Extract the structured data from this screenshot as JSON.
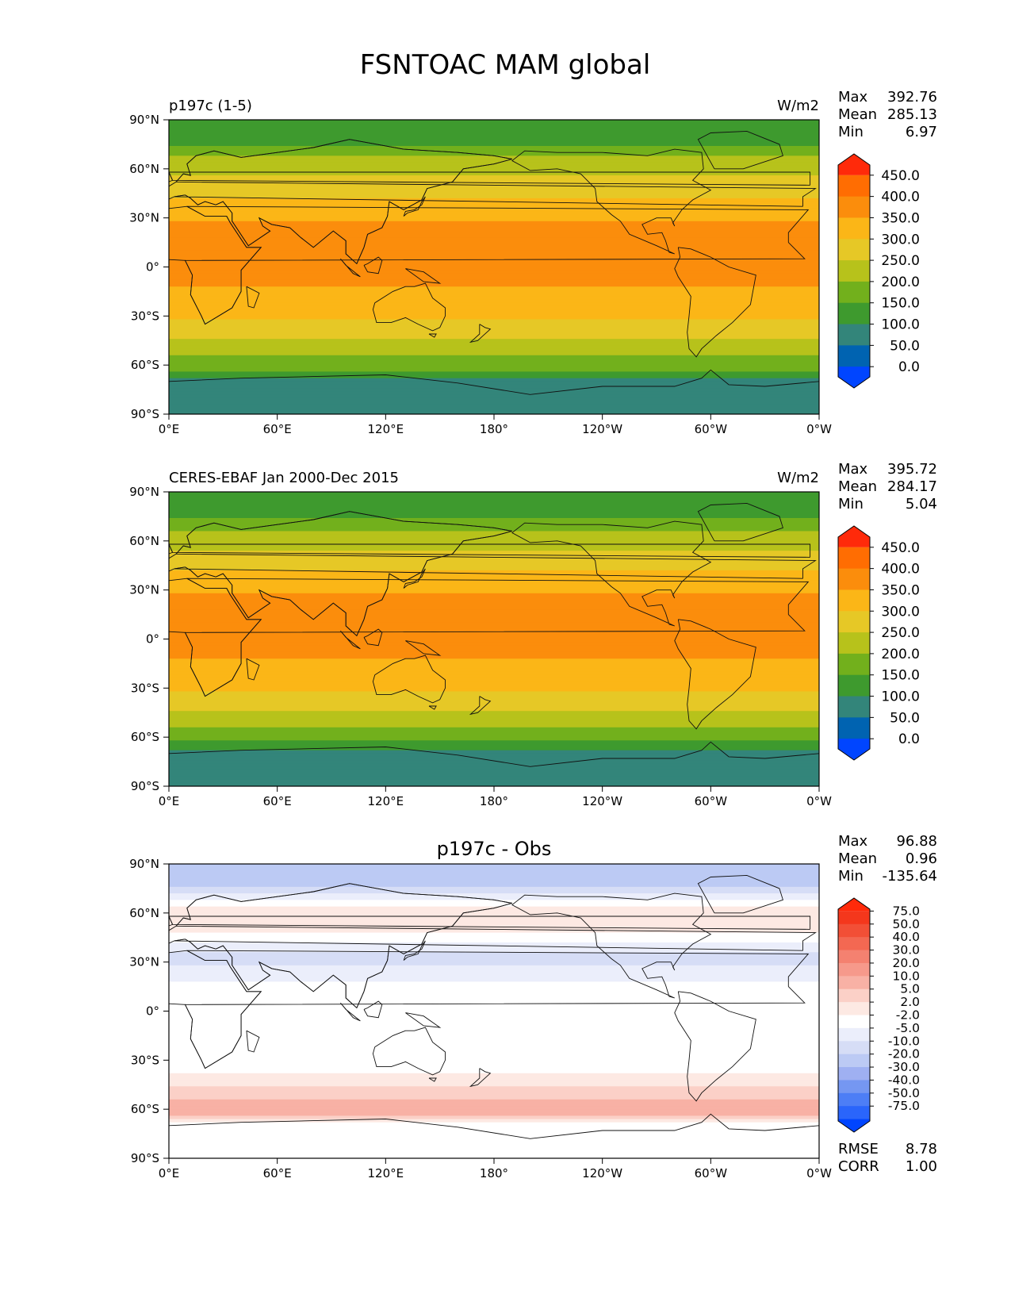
{
  "figure": {
    "title": "FSNTOAC MAM global"
  },
  "ticks": {
    "lat": [
      "90°N",
      "60°N",
      "30°N",
      "0°",
      "30°S",
      "60°S",
      "90°S"
    ],
    "lon": [
      "0°E",
      "60°E",
      "120°E",
      "180°",
      "120°W",
      "60°W",
      "0°W"
    ]
  },
  "colors": {
    "seq": [
      "#0045ff",
      "#0063b1",
      "#33857a",
      "#3e9a2e",
      "#72b01c",
      "#b7c21b",
      "#e6c826",
      "#fbb617",
      "#fb8d0c",
      "#ff6d02",
      "#ff2a0a"
    ],
    "div": [
      "#0045ff",
      "#2a65fb",
      "#4d7ef6",
      "#7597f2",
      "#9fb0f2",
      "#bccaf4",
      "#d6ddf6",
      "#ebeefb",
      "#ffffff",
      "#fde9e3",
      "#fbd0c7",
      "#f8b1a5",
      "#f6998b",
      "#f48170",
      "#f36852",
      "#f24f36",
      "#f4371c",
      "#ff2a0a"
    ]
  },
  "chart_data": [
    {
      "type": "heatmap",
      "title": "p197c (1-5)",
      "units": "W/m2",
      "stats": {
        "max_label": "Max",
        "max": "392.76",
        "mean_label": "Mean",
        "mean": "285.13",
        "min_label": "Min",
        "min": "6.97"
      },
      "colorbar_levels": [
        "450.0",
        "400.0",
        "350.0",
        "300.0",
        "250.0",
        "200.0",
        "150.0",
        "100.0",
        "50.0",
        "0.0"
      ],
      "xlim": [
        0,
        360
      ],
      "ylim": [
        -90,
        90
      ],
      "zonal_profile": [
        {
          "lat": 90,
          "value": 100
        },
        {
          "lat": 80,
          "value": 110
        },
        {
          "lat": 72,
          "value": 160
        },
        {
          "lat": 66,
          "value": 210
        },
        {
          "lat": 58,
          "value": 240
        },
        {
          "lat": 48,
          "value": 275
        },
        {
          "lat": 40,
          "value": 310
        },
        {
          "lat": 33,
          "value": 340
        },
        {
          "lat": 20,
          "value": 370
        },
        {
          "lat": 10,
          "value": 370
        },
        {
          "lat": -8,
          "value": 360
        },
        {
          "lat": -15,
          "value": 345
        },
        {
          "lat": -25,
          "value": 325
        },
        {
          "lat": -35,
          "value": 290
        },
        {
          "lat": -43,
          "value": 255
        },
        {
          "lat": -50,
          "value": 225
        },
        {
          "lat": -56,
          "value": 190
        },
        {
          "lat": -62,
          "value": 160
        },
        {
          "lat": -67,
          "value": 110
        },
        {
          "lat": -72,
          "value": 70
        },
        {
          "lat": -90,
          "value": 60
        }
      ]
    },
    {
      "type": "heatmap",
      "title": "CERES-EBAF Jan 2000-Dec 2015",
      "units": "W/m2",
      "stats": {
        "max_label": "Max",
        "max": "395.72",
        "mean_label": "Mean",
        "mean": "284.17",
        "min_label": "Min",
        "min": "5.04"
      },
      "colorbar_levels": [
        "450.0",
        "400.0",
        "350.0",
        "300.0",
        "250.0",
        "200.0",
        "150.0",
        "100.0",
        "50.0",
        "0.0"
      ],
      "xlim": [
        0,
        360
      ],
      "ylim": [
        -90,
        90
      ],
      "zonal_profile": [
        {
          "lat": 90,
          "value": 100
        },
        {
          "lat": 80,
          "value": 115
        },
        {
          "lat": 72,
          "value": 165
        },
        {
          "lat": 66,
          "value": 205
        },
        {
          "lat": 58,
          "value": 235
        },
        {
          "lat": 48,
          "value": 272
        },
        {
          "lat": 40,
          "value": 305
        },
        {
          "lat": 33,
          "value": 338
        },
        {
          "lat": 20,
          "value": 368
        },
        {
          "lat": 10,
          "value": 370
        },
        {
          "lat": -8,
          "value": 360
        },
        {
          "lat": -15,
          "value": 345
        },
        {
          "lat": -25,
          "value": 322
        },
        {
          "lat": -35,
          "value": 288
        },
        {
          "lat": -43,
          "value": 252
        },
        {
          "lat": -50,
          "value": 222
        },
        {
          "lat": -56,
          "value": 188
        },
        {
          "lat": -62,
          "value": 158
        },
        {
          "lat": -67,
          "value": 108
        },
        {
          "lat": -72,
          "value": 68
        },
        {
          "lat": -90,
          "value": 58
        }
      ]
    },
    {
      "type": "heatmap",
      "title": "p197c - Obs",
      "units": "",
      "stats": {
        "max_label": "Max",
        "max": "96.88",
        "mean_label": "Mean",
        "mean": "0.96",
        "min_label": "Min",
        "min": "-135.64"
      },
      "colorbar_levels": [
        "75.0",
        "50.0",
        "40.0",
        "30.0",
        "20.0",
        "10.0",
        "5.0",
        "2.0",
        "-2.0",
        "-5.0",
        "-10.0",
        "-20.0",
        "-30.0",
        "-40.0",
        "-50.0",
        "-75.0"
      ],
      "metrics": {
        "rmse_label": "RMSE",
        "rmse": "8.78",
        "corr_label": "CORR",
        "corr": "1.00"
      },
      "xlim": [
        0,
        360
      ],
      "ylim": [
        -90,
        90
      ],
      "zonal_profile": [
        {
          "lat": 90,
          "value": -12
        },
        {
          "lat": 78,
          "value": -12
        },
        {
          "lat": 72,
          "value": -6
        },
        {
          "lat": 62,
          "value": 4
        },
        {
          "lat": 50,
          "value": 3
        },
        {
          "lat": 40,
          "value": -4
        },
        {
          "lat": 32,
          "value": -6
        },
        {
          "lat": 22,
          "value": -3
        },
        {
          "lat": 12,
          "value": 0
        },
        {
          "lat": -20,
          "value": 0
        },
        {
          "lat": -35,
          "value": 1
        },
        {
          "lat": -42,
          "value": 3
        },
        {
          "lat": -48,
          "value": 6
        },
        {
          "lat": -54,
          "value": 10
        },
        {
          "lat": -58,
          "value": 15
        },
        {
          "lat": -63,
          "value": 12
        },
        {
          "lat": -68,
          "value": 0
        },
        {
          "lat": -74,
          "value": -1
        },
        {
          "lat": -90,
          "value": 0
        }
      ]
    }
  ]
}
